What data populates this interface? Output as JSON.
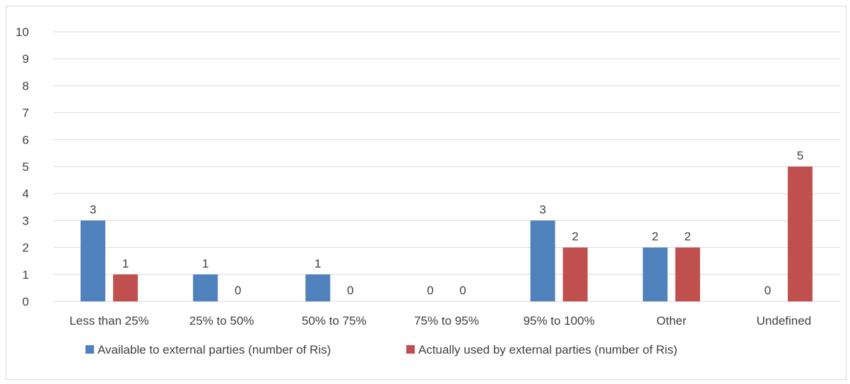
{
  "chart_data": {
    "type": "bar",
    "title": "",
    "xlabel": "",
    "ylabel": "",
    "ylim": [
      0,
      10
    ],
    "yticks": [
      0,
      1,
      2,
      3,
      4,
      5,
      6,
      7,
      8,
      9,
      10
    ],
    "grid": true,
    "legend_position": "bottom",
    "data_labels": true,
    "categories": [
      "Less than 25%",
      "25% to 50%",
      "50% to 75%",
      "75% to 95%",
      "95% to 100%",
      "Other",
      "Undefined"
    ],
    "series": [
      {
        "name": "Available to external parties (number of Ris)",
        "color": "#4f81bd",
        "values": [
          3,
          1,
          1,
          0,
          3,
          2,
          0
        ]
      },
      {
        "name": "Actually used by external parties (number of Ris)",
        "color": "#c0504d",
        "values": [
          1,
          0,
          0,
          0,
          2,
          2,
          5
        ]
      }
    ]
  }
}
